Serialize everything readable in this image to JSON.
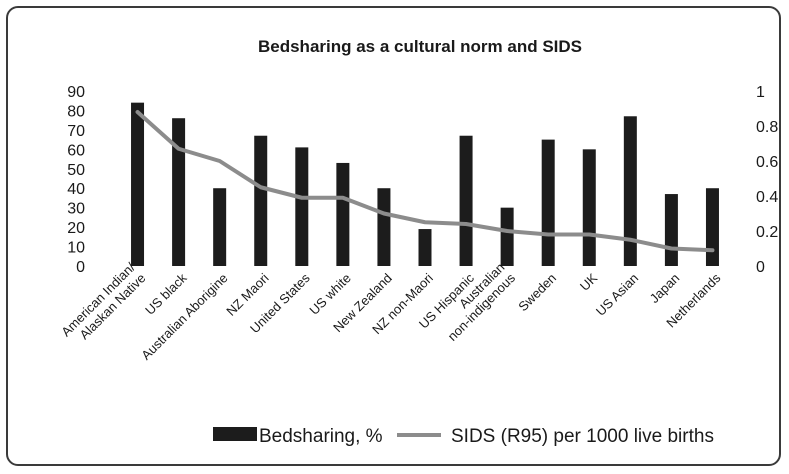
{
  "chart_data": {
    "type": "bar",
    "title": "Bedsharing as a cultural norm and SIDS",
    "categories": [
      [
        "American Indian/",
        "Alaskan Native"
      ],
      [
        "US black"
      ],
      [
        "Australian Aborigine"
      ],
      [
        "NZ Maori"
      ],
      [
        "United States"
      ],
      [
        "US white"
      ],
      [
        "New Zealand"
      ],
      [
        "NZ non-Maori"
      ],
      [
        "US Hispanic"
      ],
      [
        "Australian",
        "non-indigenous"
      ],
      [
        "Sweden"
      ],
      [
        "UK"
      ],
      [
        "US Asian"
      ],
      [
        "Japan"
      ],
      [
        "Netherlands"
      ]
    ],
    "series": [
      {
        "name": "Bedsharing, %",
        "type": "bar",
        "axis": "left",
        "color": "#1c1c1c",
        "values": [
          84,
          76,
          40,
          67,
          61,
          53,
          40,
          19,
          67,
          30,
          65,
          60,
          77,
          37,
          40
        ]
      },
      {
        "name": "SIDS (R95) per 1000 live births",
        "type": "line",
        "axis": "right",
        "color": "#8c8c8c",
        "values": [
          0.88,
          0.67,
          0.6,
          0.45,
          0.39,
          0.39,
          0.3,
          0.25,
          0.24,
          0.2,
          0.18,
          0.18,
          0.15,
          0.1,
          0.09
        ]
      }
    ],
    "y_left": {
      "ylim": [
        0,
        90
      ],
      "ticks": [
        "0",
        "10",
        "20",
        "30",
        "40",
        "50",
        "60",
        "70",
        "80",
        "90"
      ]
    },
    "y_right": {
      "ylim": [
        0,
        1
      ],
      "ticks": [
        "0",
        "0.2",
        "0.4",
        "0.6",
        "0.8",
        "1"
      ]
    },
    "grid": false,
    "legend_position": "bottom"
  }
}
